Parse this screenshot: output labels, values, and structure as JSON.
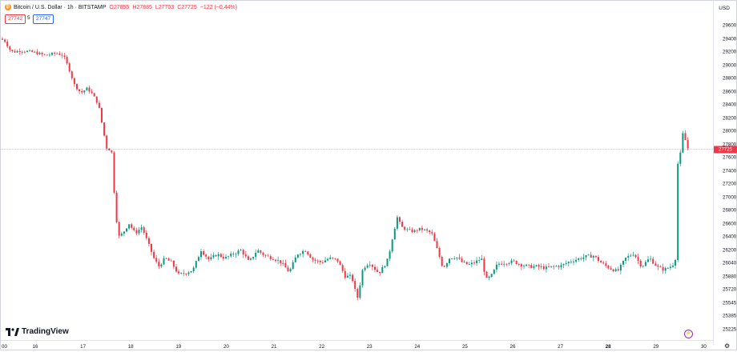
{
  "header": {
    "symbol": "Bitcoin / U.S. Dollar · 1h · BITSTAMP",
    "o": "O27855",
    "h": "H27885",
    "l": "L27703",
    "c": "C27725",
    "change": "−122 (−0.44%)"
  },
  "trade": {
    "sell_price": "27742",
    "spread": "5",
    "buy_price": "27747"
  },
  "currency": "USD",
  "last_price": "27725",
  "branding": "TradingView",
  "colors": {
    "up": "#089981",
    "down": "#f23645",
    "accent": "#2962ff"
  },
  "icons": {
    "coin": "bitcoin-icon",
    "alert": "lightning-icon",
    "settings": "gear-icon"
  },
  "chart_data": {
    "type": "candlestick",
    "y_ticks": [
      "29600",
      "29400",
      "29200",
      "29000",
      "28800",
      "28600",
      "28400",
      "28200",
      "28000",
      "27800",
      "27600",
      "27400",
      "27200",
      "27000",
      "26800",
      "26600",
      "26400",
      "26200",
      "26040",
      "25880",
      "25720",
      "25545",
      "25385",
      "25225"
    ],
    "x_ticks": [
      "00",
      "16",
      "17",
      "18",
      "19",
      "20",
      "21",
      "22",
      "23",
      "24",
      "25",
      "26",
      "27",
      "28",
      "29",
      "30"
    ],
    "price_path": [
      [
        0,
        29400
      ],
      [
        6,
        29360
      ],
      [
        10,
        29250
      ],
      [
        15,
        29200
      ],
      [
        25,
        29220
      ],
      [
        40,
        29200
      ],
      [
        55,
        29150
      ],
      [
        70,
        29180
      ],
      [
        78,
        29150
      ],
      [
        85,
        28950
      ],
      [
        92,
        28700
      ],
      [
        100,
        28580
      ],
      [
        108,
        28650
      ],
      [
        115,
        28550
      ],
      [
        122,
        28400
      ],
      [
        128,
        28000
      ],
      [
        133,
        27700
      ],
      [
        138,
        27750
      ],
      [
        143,
        26800
      ],
      [
        147,
        26400
      ],
      [
        152,
        26450
      ],
      [
        160,
        26600
      ],
      [
        168,
        26450
      ],
      [
        176,
        26550
      ],
      [
        184,
        26300
      ],
      [
        190,
        26120
      ],
      [
        197,
        26000
      ],
      [
        205,
        26100
      ],
      [
        213,
        26050
      ],
      [
        222,
        25900
      ],
      [
        230,
        25920
      ],
      [
        240,
        25960
      ],
      [
        250,
        26200
      ],
      [
        260,
        26080
      ],
      [
        270,
        26150
      ],
      [
        280,
        26100
      ],
      [
        290,
        26150
      ],
      [
        300,
        26200
      ],
      [
        310,
        26050
      ],
      [
        320,
        26200
      ],
      [
        330,
        26130
      ],
      [
        340,
        26100
      ],
      [
        350,
        26050
      ],
      [
        360,
        25930
      ],
      [
        370,
        26150
      ],
      [
        380,
        26200
      ],
      [
        390,
        26080
      ],
      [
        400,
        26050
      ],
      [
        410,
        26100
      ],
      [
        420,
        26080
      ],
      [
        430,
        25880
      ],
      [
        438,
        25880
      ],
      [
        445,
        25600
      ],
      [
        452,
        25980
      ],
      [
        460,
        26050
      ],
      [
        466,
        25980
      ],
      [
        472,
        25920
      ],
      [
        478,
        26000
      ],
      [
        484,
        26100
      ],
      [
        490,
        26450
      ],
      [
        495,
        26700
      ],
      [
        500,
        26550
      ],
      [
        508,
        26500
      ],
      [
        515,
        26480
      ],
      [
        522,
        26520
      ],
      [
        530,
        26500
      ],
      [
        538,
        26450
      ],
      [
        545,
        26200
      ],
      [
        552,
        25980
      ],
      [
        560,
        26100
      ],
      [
        568,
        26120
      ],
      [
        576,
        26050
      ],
      [
        584,
        26020
      ],
      [
        592,
        26050
      ],
      [
        600,
        26100
      ],
      [
        606,
        25840
      ],
      [
        612,
        25880
      ],
      [
        620,
        26030
      ],
      [
        630,
        26050
      ],
      [
        640,
        26060
      ],
      [
        650,
        26020
      ],
      [
        660,
        26000
      ],
      [
        670,
        26000
      ],
      [
        680,
        25980
      ],
      [
        690,
        26000
      ],
      [
        700,
        26010
      ],
      [
        710,
        26060
      ],
      [
        720,
        26090
      ],
      [
        730,
        26120
      ],
      [
        740,
        26130
      ],
      [
        750,
        26040
      ],
      [
        760,
        25980
      ],
      [
        770,
        25940
      ],
      [
        780,
        26100
      ],
      [
        790,
        26160
      ],
      [
        800,
        26000
      ],
      [
        810,
        26100
      ],
      [
        820,
        25990
      ],
      [
        828,
        25960
      ],
      [
        836,
        26000
      ],
      [
        842,
        26050
      ],
      [
        845,
        27500
      ],
      [
        848,
        27600
      ],
      [
        850,
        28000
      ],
      [
        855,
        27850
      ],
      [
        858,
        27725
      ]
    ]
  }
}
